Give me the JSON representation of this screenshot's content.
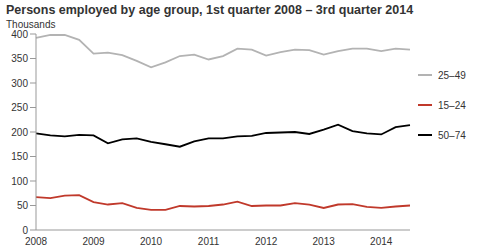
{
  "chart_data": {
    "type": "line",
    "title": "Persons employed by age group, 1st quarter 2008 – 3rd quarter 2014",
    "y_label": "Thousands",
    "categories": [
      "2008",
      null,
      null,
      null,
      "2009",
      null,
      null,
      null,
      "2010",
      null,
      null,
      null,
      "2011",
      null,
      null,
      null,
      "2012",
      null,
      null,
      null,
      "2013",
      null,
      null,
      null,
      "2014",
      null,
      null
    ],
    "series": [
      {
        "name": "15–24",
        "color": "#c0392b",
        "values": [
          67,
          65,
          70,
          71,
          57,
          52,
          55,
          45,
          41,
          41,
          49,
          48,
          49,
          52,
          58,
          49,
          50,
          50,
          55,
          52,
          45,
          52,
          53,
          47,
          45,
          48,
          50
        ]
      },
      {
        "name": "25–49",
        "color": "#b3b3b3",
        "values": [
          392,
          398,
          398,
          388,
          360,
          362,
          357,
          345,
          332,
          342,
          355,
          358,
          348,
          355,
          370,
          368,
          356,
          363,
          368,
          367,
          358,
          365,
          370,
          370,
          365,
          370,
          368
        ]
      },
      {
        "name": "50–74",
        "color": "#000000",
        "values": [
          197,
          193,
          191,
          194,
          193,
          177,
          185,
          187,
          180,
          175,
          170,
          181,
          187,
          187,
          191,
          192,
          198,
          199,
          200,
          196,
          205,
          215,
          202,
          197,
          195,
          210,
          214
        ]
      }
    ],
    "ylim": [
      0,
      400
    ],
    "yticks": [
      0,
      50,
      100,
      150,
      200,
      250,
      300,
      350,
      400
    ],
    "grid": false,
    "legend": "right"
  }
}
